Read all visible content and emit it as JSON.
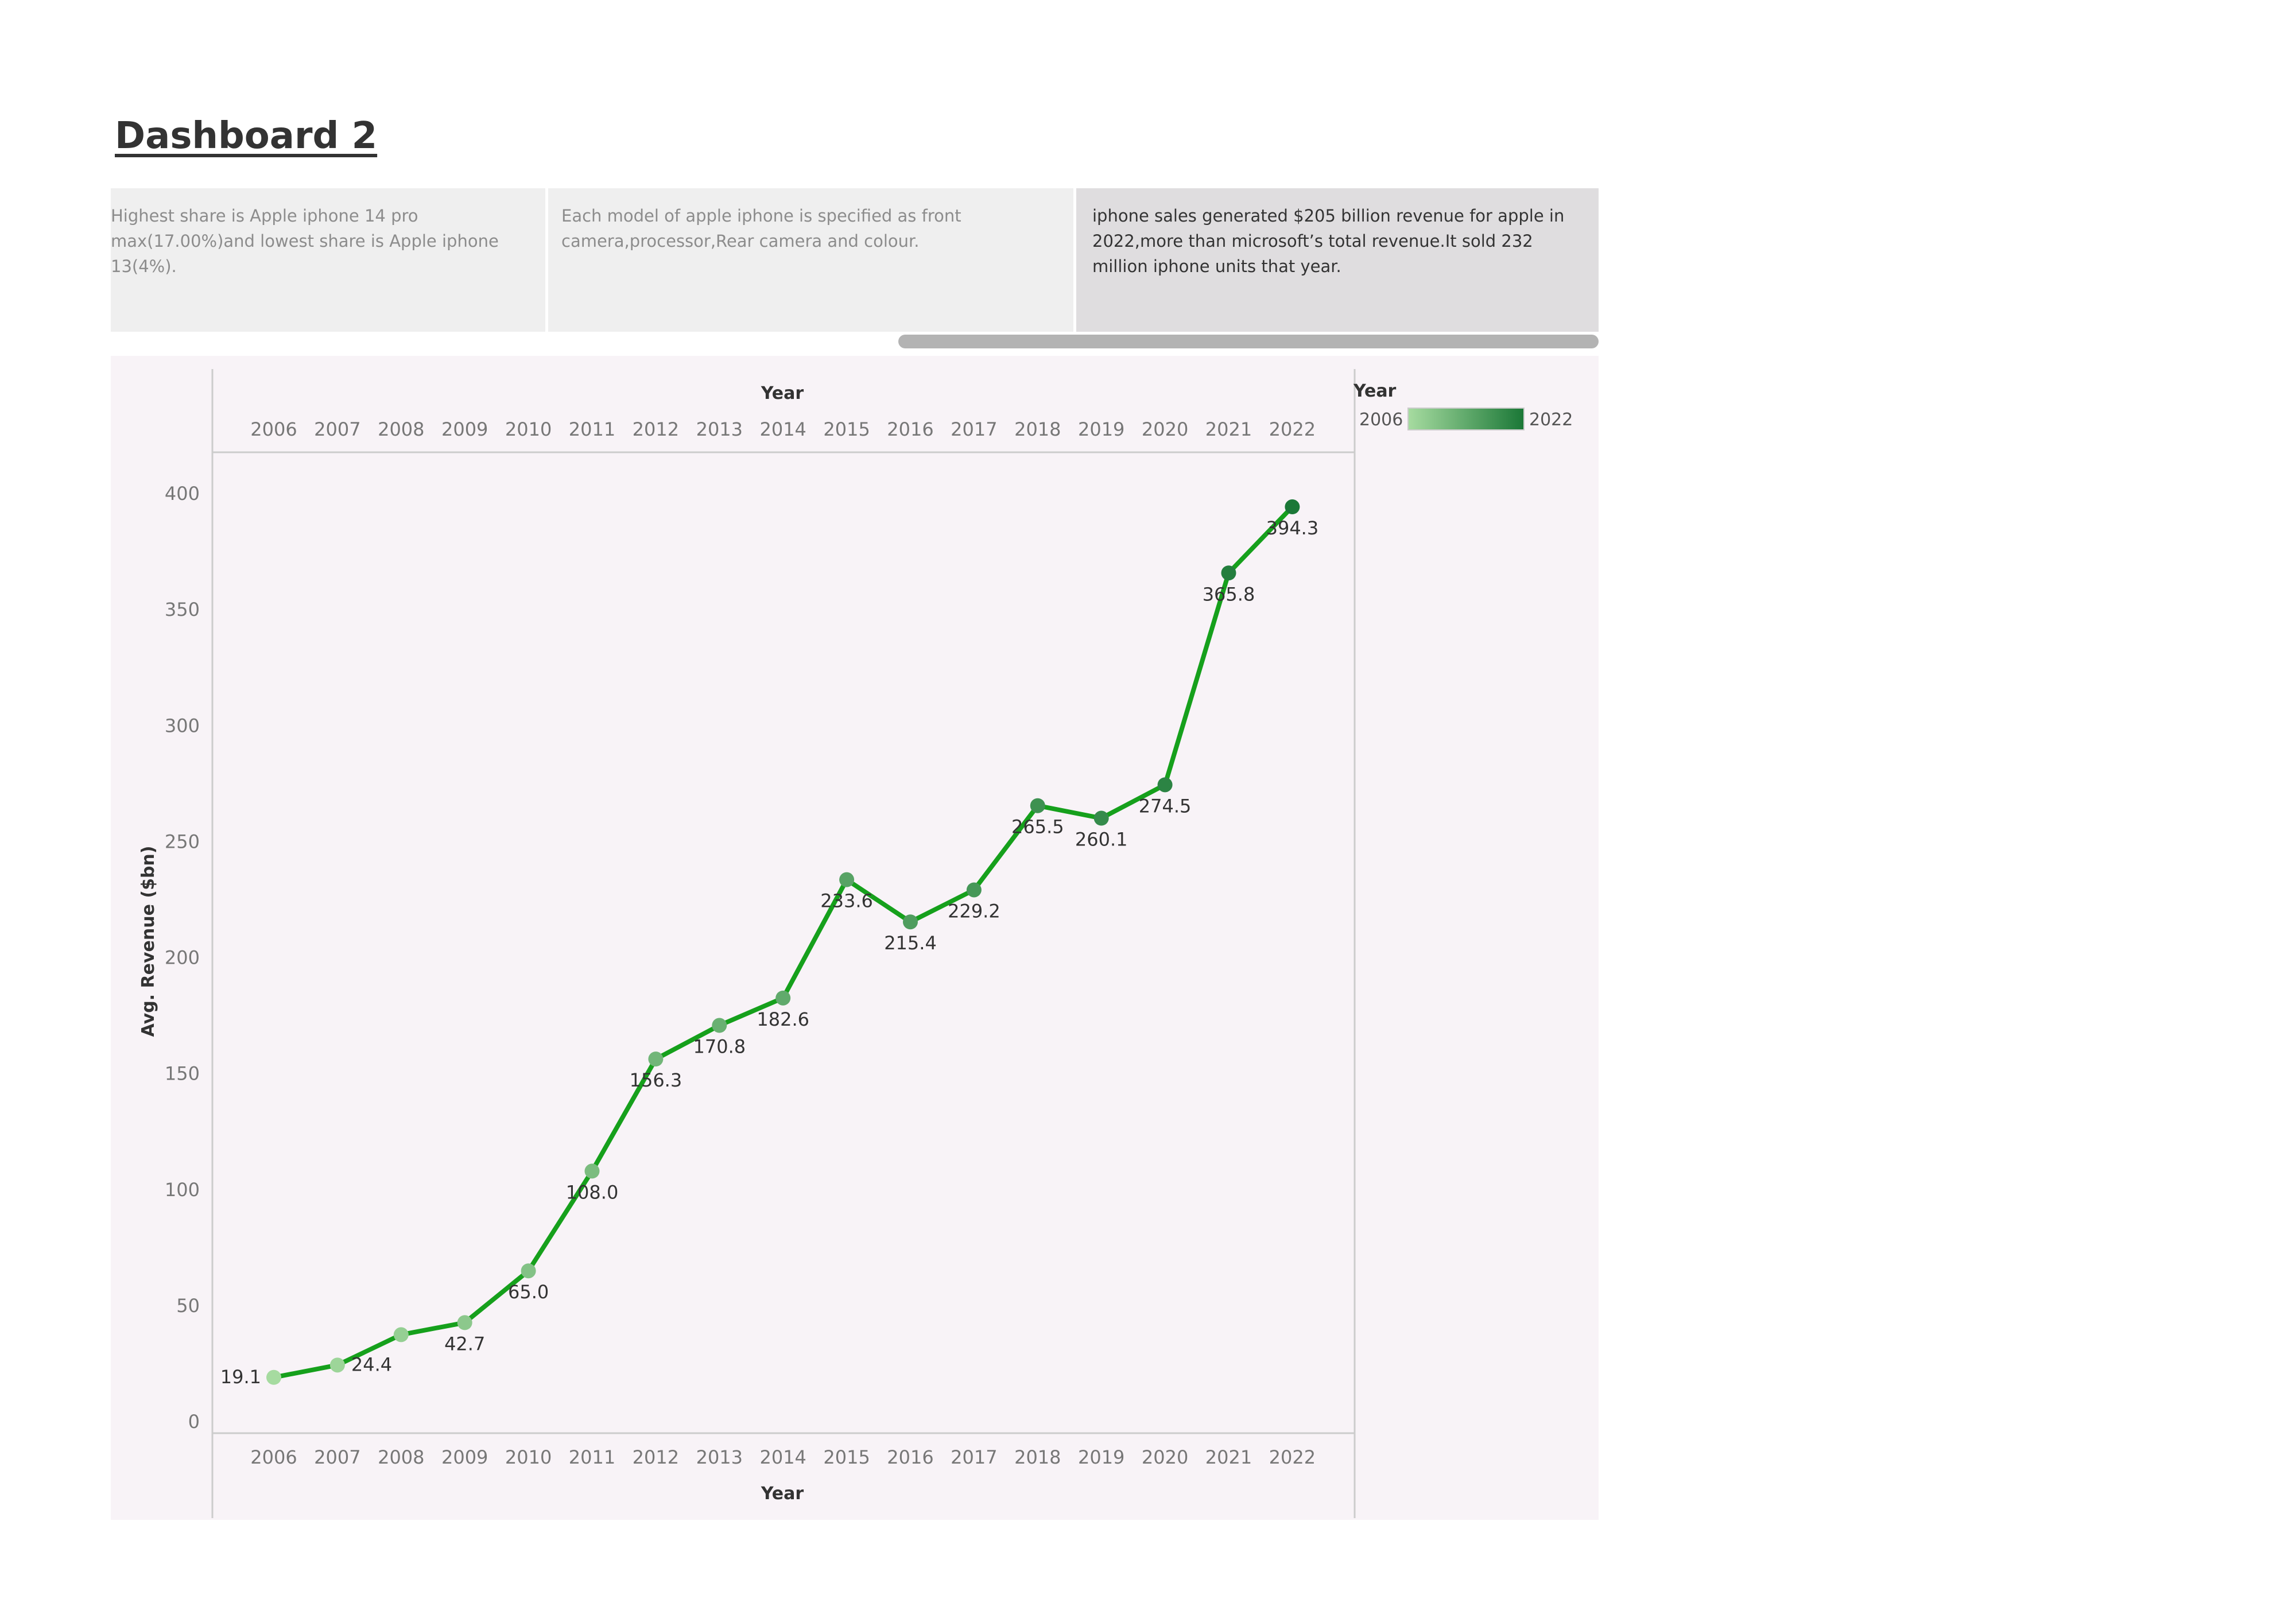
{
  "dashboard": {
    "title": "Dashboard 2"
  },
  "cards": [
    {
      "text": "Highest share is Apple iphone 14 pro max(17.00%)and lowest share is Apple iphone 13(4%)."
    },
    {
      "text": "Each model of apple iphone is specified as front camera,processor,Rear camera and colour."
    },
    {
      "text": "iphone sales generated $205 billion revenue for apple in 2022,more than microsoft’s total revenue.It sold 232 million iphone units that year."
    }
  ],
  "legend": {
    "title": "Year",
    "min_label": "2006",
    "max_label": "2022",
    "color_start": "#a6dba0",
    "color_end": "#1b7837"
  },
  "colors": {
    "line": "#16a01c",
    "panel_background": "#f8f3f7",
    "axis_line": "#cccccc"
  },
  "chart_data": {
    "type": "line",
    "title": "",
    "xlabel": "Year",
    "ylabel": "Avg. Revenue ($bn)",
    "x_axis_positions": [
      "top",
      "bottom"
    ],
    "categories": [
      "2006",
      "2007",
      "2008",
      "2009",
      "2010",
      "2011",
      "2012",
      "2013",
      "2014",
      "2015",
      "2016",
      "2017",
      "2018",
      "2019",
      "2020",
      "2021",
      "2022"
    ],
    "series": [
      {
        "values": [
          19.1,
          24.4,
          37.5,
          42.7,
          65.0,
          108.0,
          156.3,
          170.8,
          182.6,
          233.6,
          215.4,
          229.2,
          265.5,
          260.1,
          274.5,
          365.8,
          394.3
        ],
        "data_labels": [
          "19.1",
          "24.4",
          "",
          "42.7",
          "65.0",
          "108.0",
          "156.3",
          "170.8",
          "182.6",
          "233.6",
          "215.4",
          "229.2",
          "265.5",
          "260.1",
          "274.5",
          "365.8",
          "394.3"
        ]
      }
    ],
    "yticks": [
      0,
      50,
      100,
      150,
      200,
      250,
      300,
      350,
      400
    ],
    "ylim": [
      0,
      420
    ],
    "grid": false,
    "legend_position": "top-right",
    "point_color_by": "Year"
  }
}
